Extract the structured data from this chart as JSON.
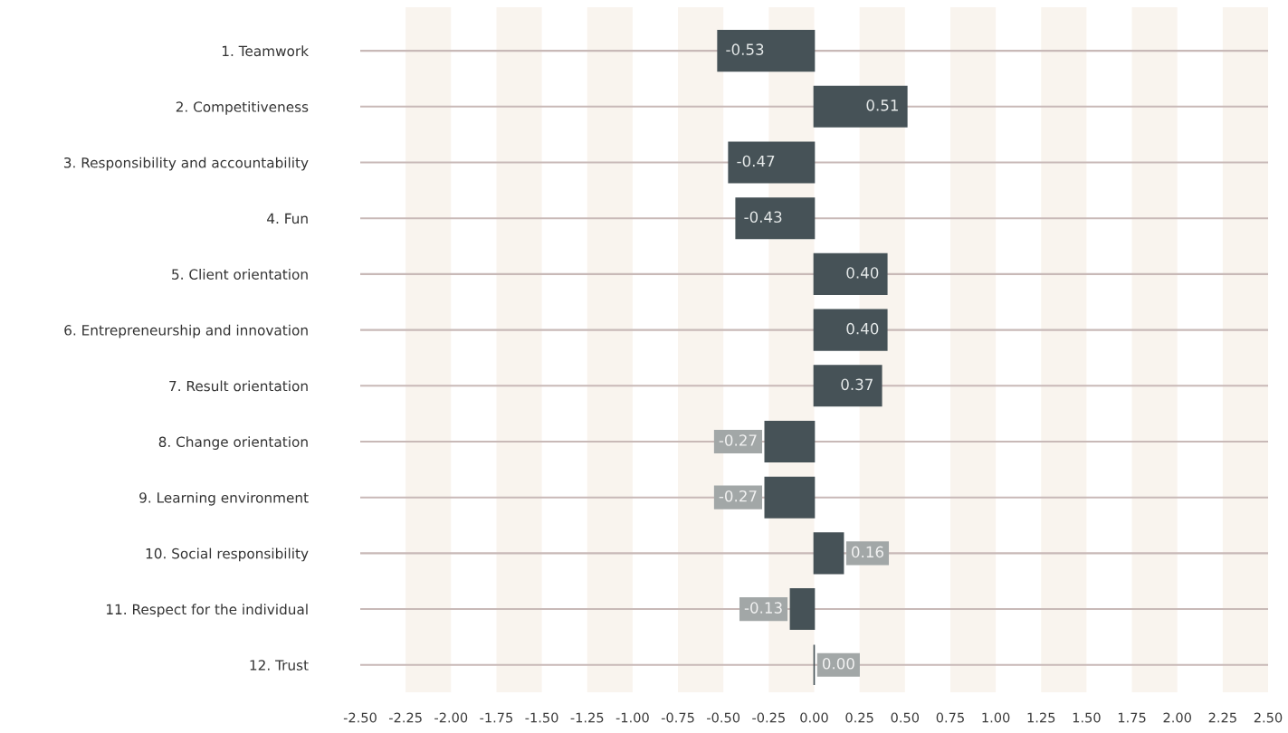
{
  "chart_data": {
    "type": "bar",
    "orientation": "horizontal",
    "color": "#465257",
    "categories": [
      "1. Teamwork",
      "2. Competitiveness",
      "3. Responsibility and accountability",
      "4. Fun",
      "5. Client orientation",
      "6. Entrepreneurship and innovation",
      "7. Result orientation",
      "8. Change orientation",
      "9. Learning environment",
      "10. Social responsibility",
      "11. Respect for the individual",
      "12. Trust"
    ],
    "values": [
      -0.53,
      0.51,
      -0.47,
      -0.43,
      0.4,
      0.4,
      0.37,
      -0.27,
      -0.27,
      0.16,
      -0.13,
      0.0
    ],
    "value_labels": [
      "-0.53",
      "0.51",
      "-0.47",
      "-0.43",
      "0.40",
      "0.40",
      "0.37",
      "-0.27",
      "-0.27",
      "0.16",
      "-0.13",
      "0.00"
    ],
    "xlim": [
      -2.5,
      2.5
    ],
    "xticks": [
      {
        "value": -2.5,
        "label": "-2.50"
      },
      {
        "value": -2.25,
        "label": "-2.25"
      },
      {
        "value": -2.0,
        "label": "-2.00"
      },
      {
        "value": -1.75,
        "label": "-1.75"
      },
      {
        "value": -1.5,
        "label": "-1.50"
      },
      {
        "value": -1.25,
        "label": "-1.25"
      },
      {
        "value": -1.0,
        "label": "-1.00"
      },
      {
        "value": -0.75,
        "label": "-0.75"
      },
      {
        "value": -0.5,
        "label": "-0.50"
      },
      {
        "value": -0.25,
        "label": "-0.25"
      },
      {
        "value": 0,
        "label": "0.00"
      },
      {
        "value": 0.25,
        "label": "0.25"
      },
      {
        "value": 0.5,
        "label": "0.50"
      },
      {
        "value": 0.75,
        "label": "0.75"
      },
      {
        "value": 1.0,
        "label": "1.00"
      },
      {
        "value": 1.25,
        "label": "1.25"
      },
      {
        "value": 1.5,
        "label": "1.50"
      },
      {
        "value": 1.75,
        "label": "1.75"
      },
      {
        "value": 2.0,
        "label": "2.00"
      },
      {
        "value": 2.25,
        "label": "2.25"
      },
      {
        "value": 2.5,
        "label": "2.50"
      }
    ],
    "bands": [
      {
        "axis": "x",
        "from": -2.25,
        "to": -2.0,
        "color": "#f9f4ee"
      },
      {
        "axis": "x",
        "from": -1.75,
        "to": -1.5,
        "color": "#f9f4ee"
      },
      {
        "axis": "x",
        "from": -1.25,
        "to": -1.0,
        "color": "#f9f4ee"
      },
      {
        "axis": "x",
        "from": -0.75,
        "to": -0.5,
        "color": "#f9f4ee"
      },
      {
        "axis": "x",
        "from": -0.25,
        "to": 0.0,
        "color": "#f9f4ee"
      },
      {
        "axis": "x",
        "from": 0.25,
        "to": 0.5,
        "color": "#f9f4ee"
      },
      {
        "axis": "x",
        "from": 0.75,
        "to": 1.0,
        "color": "#f9f4ee"
      },
      {
        "axis": "x",
        "from": 1.25,
        "to": 1.5,
        "color": "#f9f4ee"
      },
      {
        "axis": "x",
        "from": 1.75,
        "to": 2.0,
        "color": "#f9f4ee"
      },
      {
        "axis": "x",
        "from": 2.25,
        "to": 2.5,
        "color": "#f9f4ee"
      }
    ],
    "grid": "y"
  }
}
